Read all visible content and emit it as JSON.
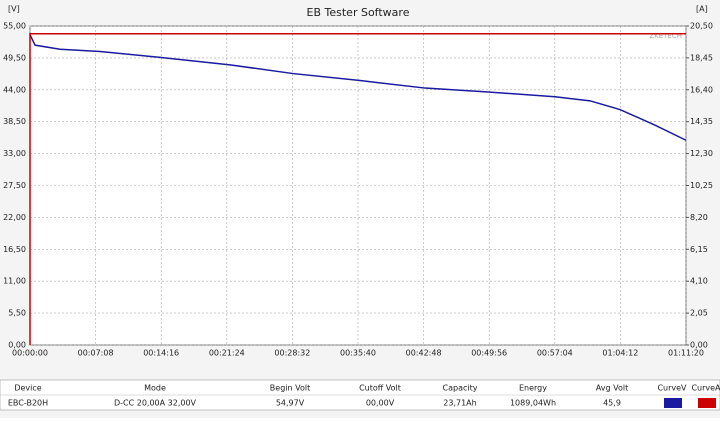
{
  "chart_data": {
    "type": "line",
    "title": "EB Tester Software",
    "ylabel": "[V]",
    "y2label": "[A]",
    "watermark": "ZKETECH",
    "xlim": [
      0,
      4280
    ],
    "ylim": [
      0,
      55
    ],
    "y2lim": [
      0,
      20.5
    ],
    "grid": true,
    "xticks": [
      {
        "value": 0,
        "label": "00:00:00"
      },
      {
        "value": 428,
        "label": "00:07:08"
      },
      {
        "value": 856,
        "label": "00:14:16"
      },
      {
        "value": 1284,
        "label": "00:21:24"
      },
      {
        "value": 1712,
        "label": "00:28:32"
      },
      {
        "value": 2140,
        "label": "00:35:40"
      },
      {
        "value": 2568,
        "label": "00:42:48"
      },
      {
        "value": 2996,
        "label": "00:49:56"
      },
      {
        "value": 3424,
        "label": "00:57:04"
      },
      {
        "value": 3852,
        "label": "01:04:12"
      },
      {
        "value": 4280,
        "label": "01:11:20"
      }
    ],
    "yticks": [
      {
        "value": 0,
        "label": "0,00"
      },
      {
        "value": 5.5,
        "label": "5,50"
      },
      {
        "value": 11,
        "label": "11,00"
      },
      {
        "value": 16.5,
        "label": "16,50"
      },
      {
        "value": 22,
        "label": "22,00"
      },
      {
        "value": 27.5,
        "label": "27,50"
      },
      {
        "value": 33,
        "label": "33,00"
      },
      {
        "value": 38.5,
        "label": "38,50"
      },
      {
        "value": 44,
        "label": "44,00"
      },
      {
        "value": 49.5,
        "label": "49,50"
      },
      {
        "value": 55,
        "label": "55,00"
      }
    ],
    "y2ticks": [
      {
        "value": 0,
        "label": "0,00"
      },
      {
        "value": 2.05,
        "label": "2,05"
      },
      {
        "value": 4.1,
        "label": "4,10"
      },
      {
        "value": 6.15,
        "label": "6,15"
      },
      {
        "value": 8.2,
        "label": "8,20"
      },
      {
        "value": 10.25,
        "label": "10,25"
      },
      {
        "value": 12.3,
        "label": "12,30"
      },
      {
        "value": 14.35,
        "label": "14,35"
      },
      {
        "value": 16.4,
        "label": "16,40"
      },
      {
        "value": 18.45,
        "label": "18,45"
      },
      {
        "value": 20.5,
        "label": "20,50"
      }
    ],
    "series": [
      {
        "name": "CurveV",
        "color": "#1a1aa0",
        "x": [
          0,
          33,
          196,
          457,
          848,
          1305,
          1716,
          2153,
          2577,
          3001,
          3425,
          3654,
          3849,
          4078,
          4280
        ],
        "values": [
          53.5,
          51.7,
          51.0,
          50.6,
          49.6,
          48.3,
          46.8,
          45.6,
          44.3,
          43.6,
          42.8,
          42.1,
          40.6,
          37.9,
          35.3
        ]
      },
      {
        "name": "CurveA",
        "color": "#cc0000",
        "axis": "y2",
        "x": [
          0,
          0,
          4280
        ],
        "values": [
          0,
          20,
          20
        ]
      }
    ]
  },
  "table": {
    "headers": [
      "Device",
      "Mode",
      "Begin Volt",
      "Cutoff Volt",
      "Capacity",
      "Energy",
      "Avg Volt",
      "CurveV",
      "CurveA"
    ],
    "rows": [
      [
        "EBC-B20H",
        "D-CC  20,00A  32,00V",
        "54,97V",
        "00,00V",
        "23,71Ah",
        "1089,04Wh",
        "45,9"
      ]
    ]
  }
}
